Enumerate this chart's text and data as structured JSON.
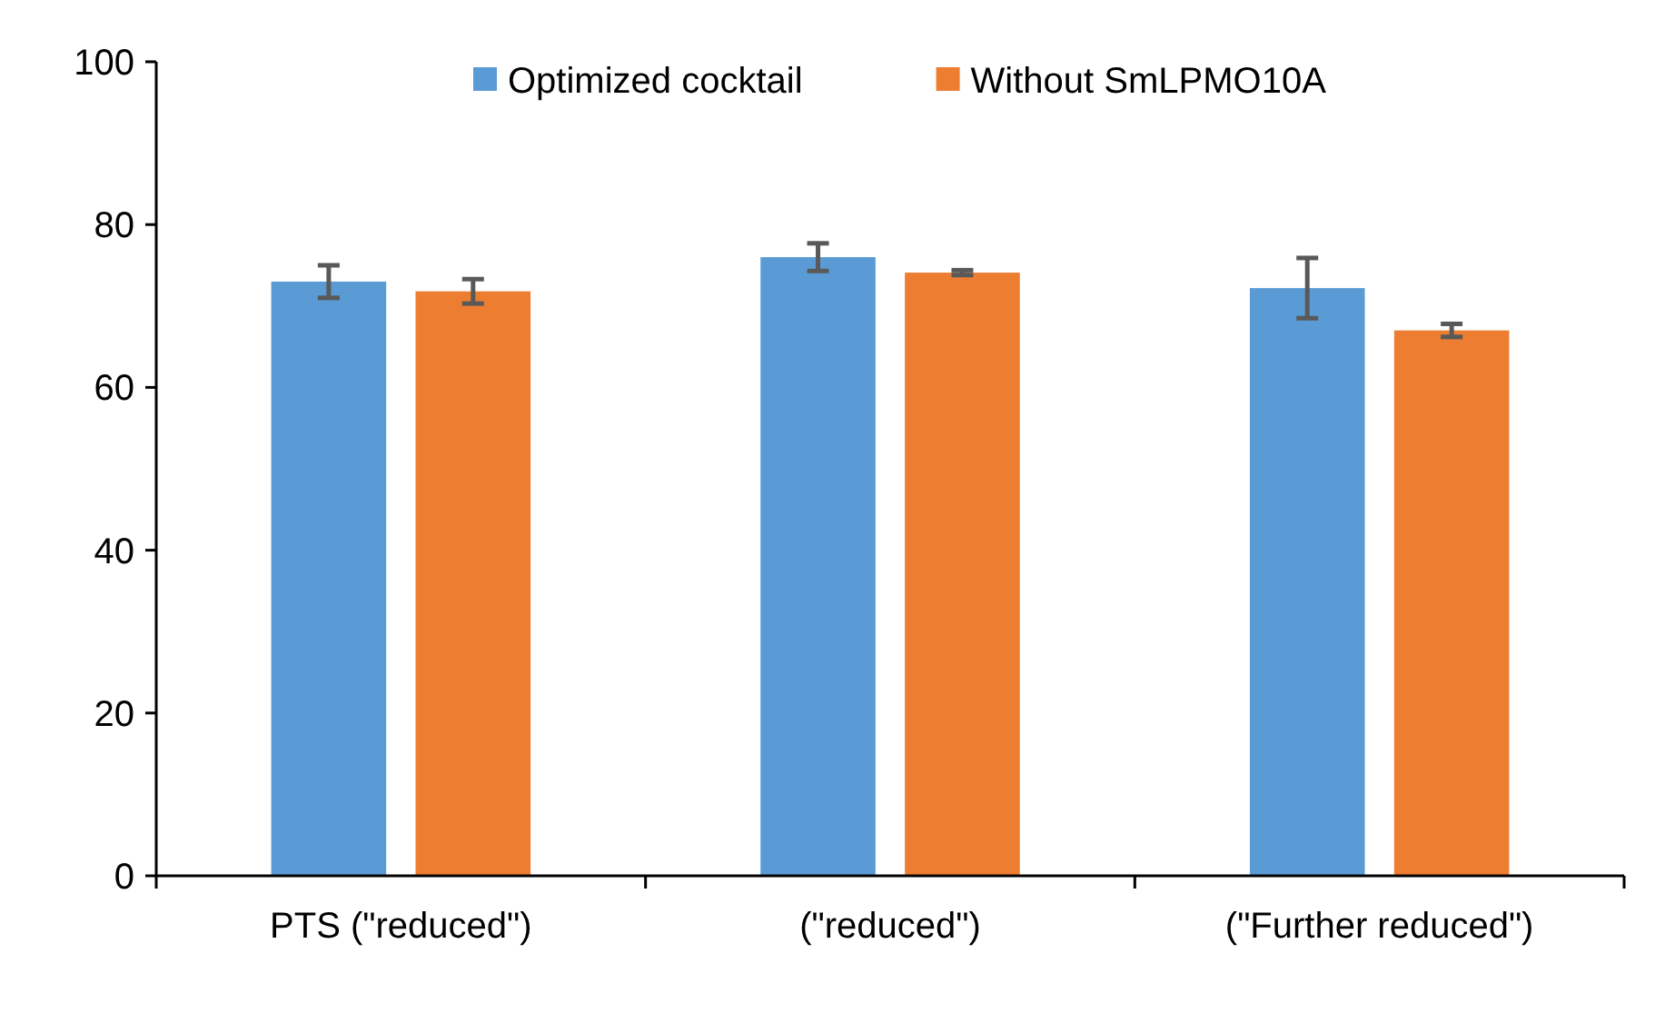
{
  "chart_data": {
    "type": "bar",
    "categories": [
      "PTS (\"reduced\")",
      "(\"reduced\")",
      "(\"Further reduced\")"
    ],
    "series": [
      {
        "name": "Optimized cocktail",
        "color": "#5b9bd5",
        "values": [
          73,
          76,
          72.2
        ],
        "errors": [
          2,
          1.7,
          3.7
        ]
      },
      {
        "name": "Without SmLPMO10A",
        "color": "#ed7d31",
        "values": [
          71.8,
          74.1,
          67
        ],
        "errors": [
          1.5,
          0.3,
          0.8
        ]
      }
    ],
    "ylim": [
      0,
      100
    ],
    "yticks": [
      0,
      20,
      40,
      60,
      80,
      100
    ],
    "grid": false,
    "legend": "top"
  }
}
